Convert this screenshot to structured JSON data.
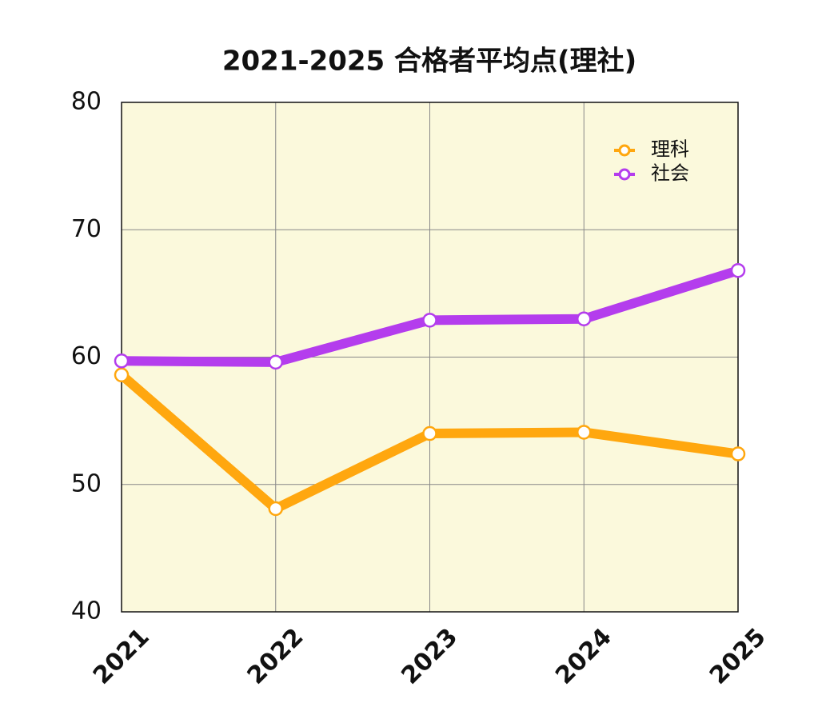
{
  "chart_data": {
    "type": "line",
    "title": "2021-2025 合格者平均点(理社)",
    "categories": [
      "2021",
      "2022",
      "2023",
      "2024",
      "2025"
    ],
    "series": [
      {
        "name": "理科",
        "color": "#ffa70f",
        "values": [
          58.6,
          48.1,
          54.0,
          54.1,
          52.4
        ]
      },
      {
        "name": "社会",
        "color": "#b43ded",
        "values": [
          59.7,
          59.6,
          62.9,
          63.0,
          66.8
        ]
      }
    ],
    "ylim": [
      40,
      80
    ],
    "yticks": [
      40,
      50,
      60,
      70,
      80
    ],
    "grid": true,
    "legend": "upper right"
  }
}
